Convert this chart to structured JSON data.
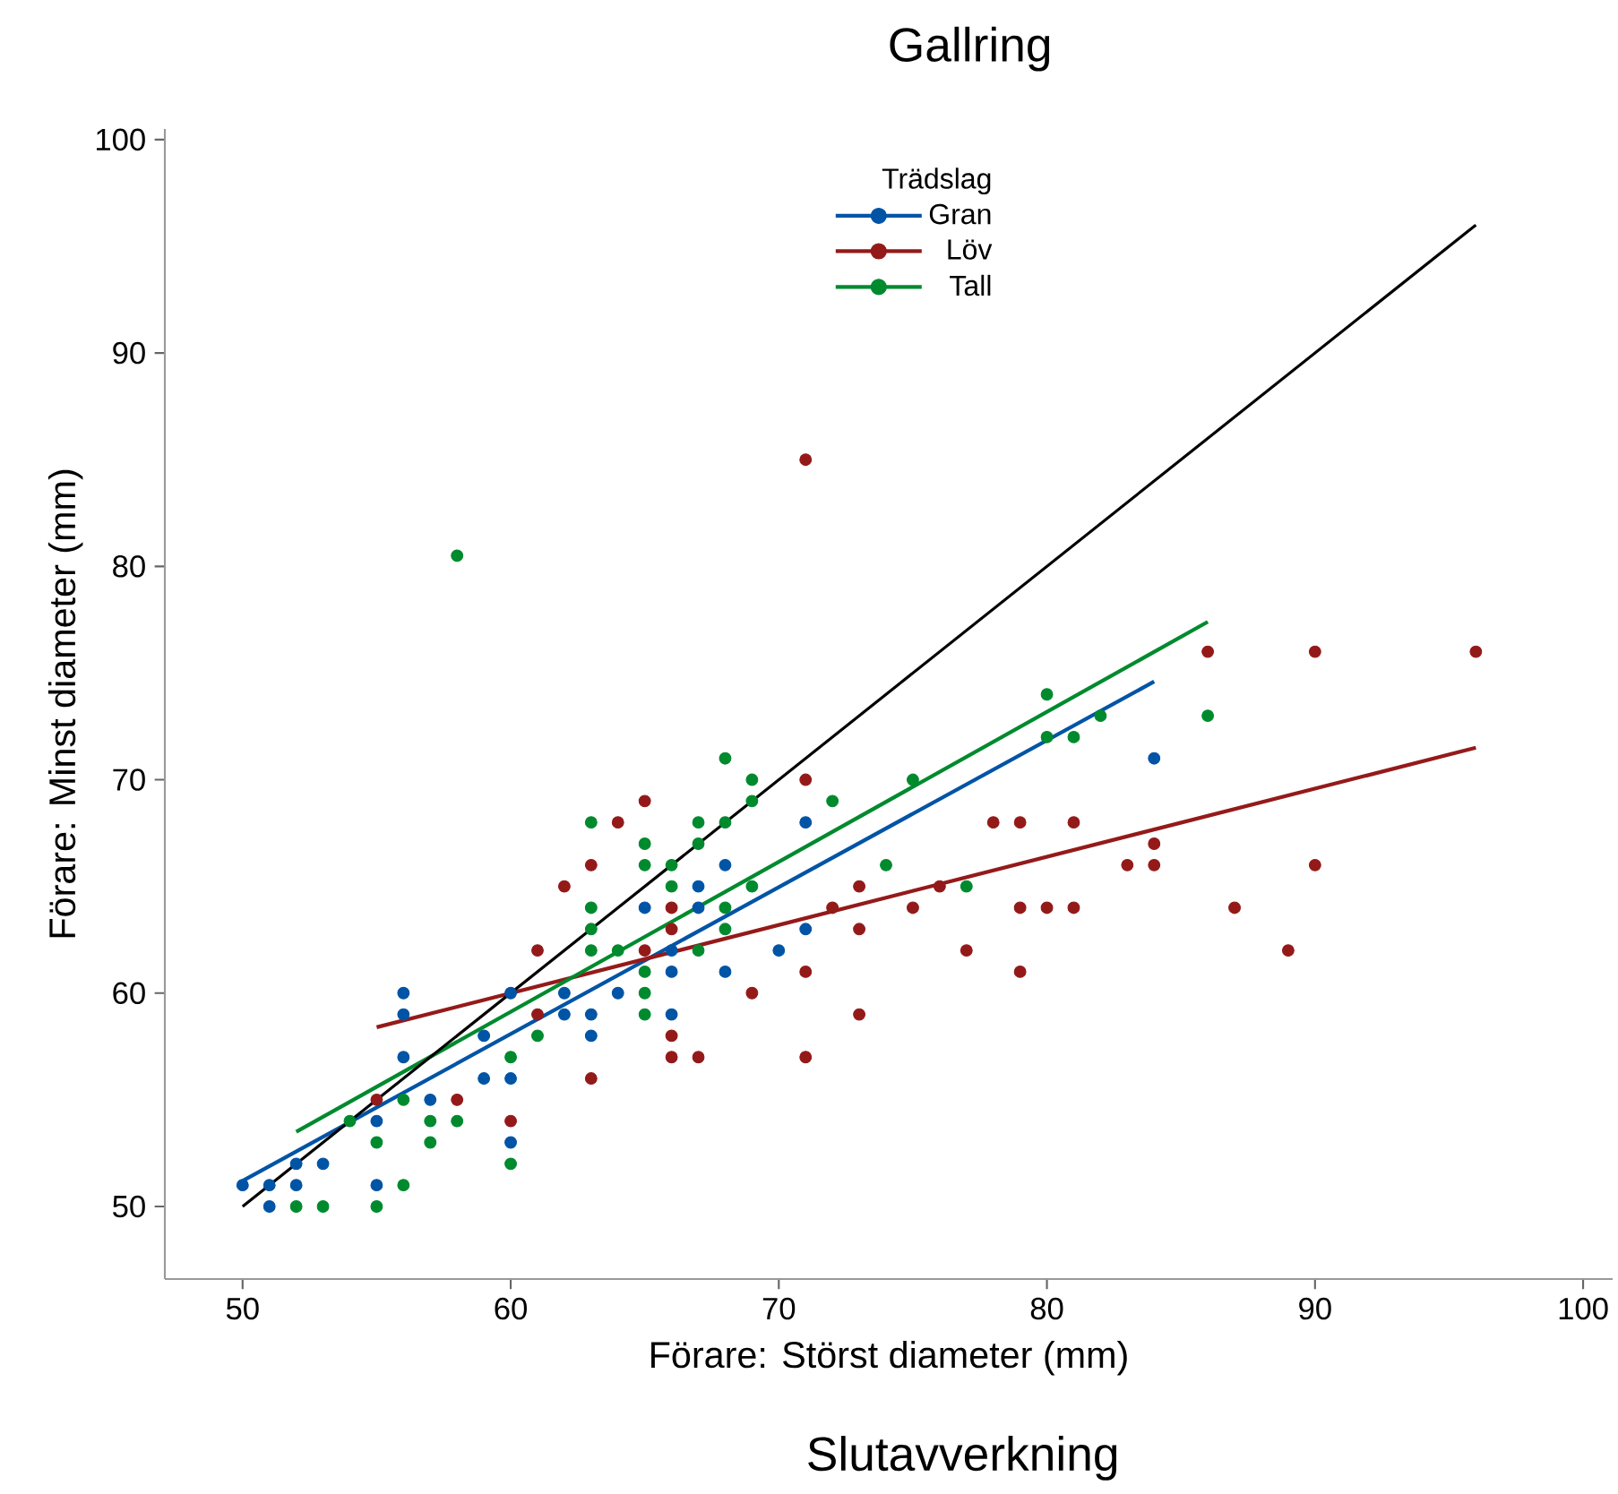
{
  "chart_data": {
    "type": "scatter",
    "title": "Gallring",
    "xlabel": "Förare: Störst diameter  (mm)",
    "ylabel": "Förare: Minst diameter (mm)",
    "legend_title": "Trädslag",
    "annotations": [
      "Slutavverkning"
    ],
    "xlim": [
      47.1,
      101.1
    ],
    "ylim": [
      46.6,
      100.5
    ],
    "xticks": [
      50,
      60,
      70,
      80,
      90,
      100
    ],
    "yticks": [
      50,
      60,
      70,
      80,
      90,
      100
    ],
    "legend": "top",
    "series": [
      {
        "name": "Gran",
        "color": "#0054a6",
        "marker": "circle",
        "x": [
          50,
          51,
          51,
          52,
          52,
          53,
          55,
          55,
          56,
          56,
          56,
          57,
          59,
          59,
          60,
          60,
          60,
          62,
          62,
          64,
          63,
          66,
          63,
          71,
          68,
          67,
          65,
          67,
          71,
          70,
          66,
          66,
          68,
          84
        ],
        "values": [
          51,
          51,
          50,
          51,
          52,
          52,
          51,
          54,
          57,
          59,
          60,
          55,
          58,
          56,
          60,
          56,
          53,
          60,
          59,
          60,
          59,
          59,
          58,
          68,
          66,
          65,
          64,
          64,
          63,
          62,
          62,
          61,
          61,
          71
        ]
      },
      {
        "name": "Löv",
        "color": "#941a1a",
        "marker": "circle",
        "x": [
          55,
          58,
          60,
          61,
          61,
          65,
          64,
          63,
          62,
          71,
          66,
          66,
          65,
          71,
          69,
          66,
          66,
          67,
          71,
          63,
          71,
          86,
          90,
          96,
          78,
          79,
          81,
          84,
          83,
          84,
          90,
          73,
          76,
          72,
          75,
          79,
          80,
          81,
          87,
          73,
          77,
          89,
          79,
          73
        ],
        "values": [
          55,
          55,
          54,
          59,
          62,
          69,
          68,
          66,
          65,
          70,
          64,
          63,
          62,
          61,
          60,
          58,
          57,
          57,
          57,
          56,
          85,
          76,
          76,
          76,
          68,
          68,
          68,
          67,
          66,
          66,
          66,
          65,
          65,
          64,
          64,
          64,
          64,
          64,
          64,
          63,
          62,
          62,
          61,
          59
        ]
      },
      {
        "name": "Tall",
        "color": "#008a2e",
        "marker": "circle",
        "x": [
          52,
          53,
          55,
          56,
          54,
          55,
          57,
          57,
          58,
          60,
          60,
          61,
          56,
          58,
          68,
          69,
          69,
          63,
          67,
          68,
          65,
          67,
          65,
          66,
          66,
          69,
          63,
          63,
          68,
          68,
          63,
          64,
          67,
          65,
          65,
          65,
          80,
          86,
          82,
          80,
          81,
          75,
          72,
          74,
          77
        ],
        "values": [
          50,
          50,
          50,
          51,
          54,
          53,
          54,
          53,
          54,
          57,
          52,
          58,
          55,
          80.5,
          71,
          70,
          69,
          68,
          68,
          68,
          67,
          67,
          66,
          66,
          65,
          65,
          64,
          63,
          64,
          63,
          62,
          62,
          62,
          61,
          60,
          59,
          74,
          73,
          73,
          72,
          72,
          70,
          69,
          66,
          65
        ]
      },
      {
        "color": "#0054a6",
        "type": "line",
        "marker": "none",
        "x": [
          50,
          84
        ],
        "values": [
          51.2,
          74.6
        ]
      },
      {
        "color": "#941a1a",
        "type": "line",
        "marker": "none",
        "x": [
          55,
          96
        ],
        "values": [
          58.4,
          71.5
        ]
      },
      {
        "color": "#008a2e",
        "type": "line",
        "marker": "none",
        "x": [
          52,
          86
        ],
        "values": [
          53.5,
          77.4
        ]
      },
      {
        "color": "#000000",
        "type": "line",
        "marker": "none",
        "x": [
          50,
          96
        ],
        "values": [
          50,
          96
        ]
      }
    ]
  }
}
